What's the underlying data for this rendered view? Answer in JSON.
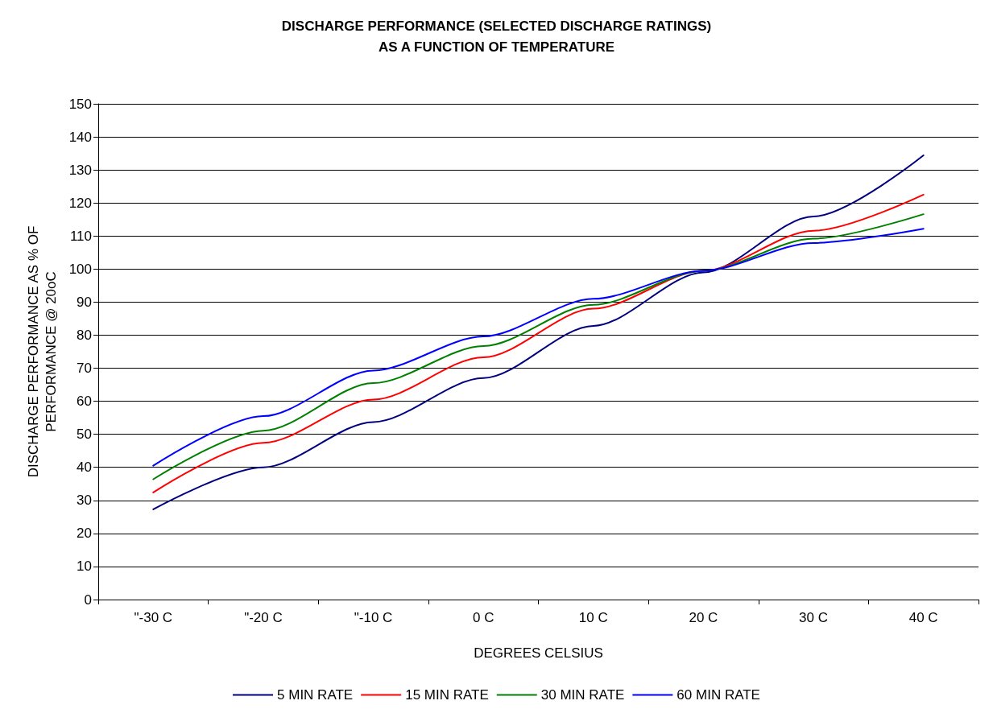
{
  "chart_data": {
    "type": "line",
    "title": "DISCHARGE PERFORMANCE (SELECTED DISCHARGE RATINGS)\nAS A FUNCTION OF TEMPERATURE",
    "xlabel": "DEGREES CELSIUS",
    "ylabel": "DISCHARGE PERFORMANCE AS % OF\nPERFORMANCE @ 20oC",
    "categories": [
      "\"-30 C",
      "\"-20 C",
      "\"-10 C",
      "0 C",
      "10 C",
      "20 C",
      "30 C",
      "40 C"
    ],
    "series": [
      {
        "name": "5 MIN RATE",
        "color": "#000080",
        "values": [
          27.3,
          40,
          53.7,
          67,
          82.8,
          99,
          115.9,
          134.4
        ]
      },
      {
        "name": "15 MIN RATE",
        "color": "#ff0000",
        "values": [
          32.4,
          47.4,
          60.5,
          73.3,
          88,
          99.5,
          111.6,
          122.5
        ]
      },
      {
        "name": "30 MIN RATE",
        "color": "#008000",
        "values": [
          36.4,
          51.1,
          65.5,
          76.7,
          89.2,
          99.5,
          109.2,
          116.6
        ]
      },
      {
        "name": "60 MIN RATE",
        "color": "#0000ff",
        "values": [
          40.5,
          55.5,
          69.3,
          79.6,
          91,
          99.5,
          107.9,
          112.2
        ]
      }
    ],
    "ylim": [
      0,
      150
    ],
    "yticks": [
      0,
      10,
      20,
      30,
      40,
      50,
      60,
      70,
      80,
      90,
      100,
      110,
      120,
      130,
      140,
      150
    ],
    "grid": "y",
    "legend": "bottom",
    "marker": "none",
    "line_style": "solid"
  }
}
